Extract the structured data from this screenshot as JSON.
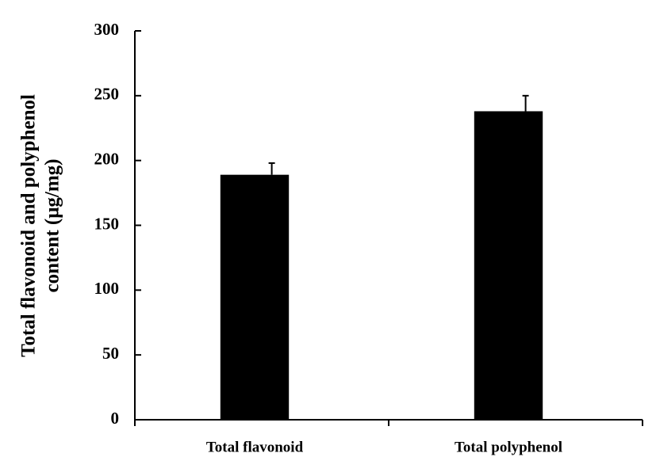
{
  "chart_data": {
    "type": "bar",
    "ylabel": [
      "Total flavonoid and polyphenol",
      "content (μg/mg)"
    ],
    "categories": [
      "Total flavonoid",
      "Total polyphenol"
    ],
    "values": [
      189,
      238
    ],
    "errors": [
      9,
      12
    ],
    "color": "#000000",
    "ylim": [
      0,
      300
    ],
    "yticks": [
      0,
      50,
      100,
      150,
      200,
      250,
      300
    ],
    "grid": false
  }
}
